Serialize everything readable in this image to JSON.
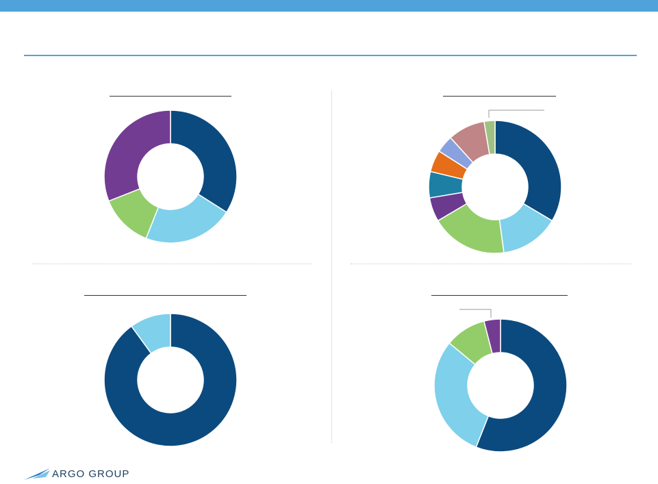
{
  "brand": {
    "name": "ARGO GROUP"
  },
  "colors": {
    "accent": "#4fa3da",
    "navy": "#0b4a7e",
    "light_blue": "#7fd0ea",
    "green": "#92cd6a",
    "purple": "#733c93",
    "dark_purple": "#6b3a8f",
    "teal": "#1d7fa3",
    "orange": "#e66d19",
    "periwinkle": "#8aa1df",
    "rose": "#c08586",
    "sage": "#9fc183"
  },
  "chart_data": [
    {
      "type": "pie",
      "donut": true,
      "title": "",
      "values": [
        34,
        22,
        13,
        31
      ],
      "colors": [
        "#0b4a7e",
        "#7fd0ea",
        "#92cd6a",
        "#733c93"
      ]
    },
    {
      "type": "pie",
      "donut": true,
      "title": "",
      "values": [
        31.5,
        13.5,
        17.5,
        5.5,
        6,
        5,
        4,
        8.5,
        2.5
      ],
      "colors": [
        "#0b4a7e",
        "#7fd0ea",
        "#92cd6a",
        "#6b3a8f",
        "#1d7fa3",
        "#e66d19",
        "#8aa1df",
        "#c08586",
        "#9fc183"
      ]
    },
    {
      "type": "pie",
      "donut": true,
      "title": "",
      "values": [
        90,
        10
      ],
      "colors": [
        "#0b4a7e",
        "#7fd0ea"
      ]
    },
    {
      "type": "pie",
      "donut": true,
      "title": "",
      "values": [
        56,
        30,
        10,
        4
      ],
      "colors": [
        "#0b4a7e",
        "#7fd0ea",
        "#92cd6a",
        "#733c93"
      ]
    }
  ]
}
